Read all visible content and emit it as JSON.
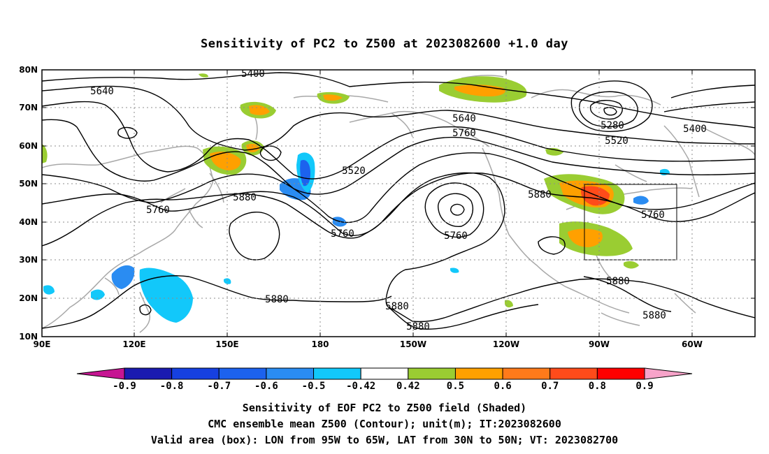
{
  "title": "Sensitivity of PC2 to Z500 at 2023082600 +1.0 day",
  "lat_labels": [
    "80N",
    "70N",
    "60N",
    "50N",
    "40N",
    "30N",
    "20N",
    "10N"
  ],
  "lon_labels": [
    "90E",
    "120E",
    "150E",
    "180",
    "150W",
    "120W",
    "90W",
    "60W"
  ],
  "contour_labels": [
    "5400",
    "5640",
    "5280",
    "5400",
    "5520",
    "5640",
    "5760",
    "5520",
    "5880",
    "5760",
    "5880",
    "5760",
    "5760",
    "5880",
    "5880",
    "5880",
    "5880",
    "5880",
    "5760"
  ],
  "colorbar": {
    "labels": [
      "-0.9",
      "-0.8",
      "-0.7",
      "-0.6",
      "-0.5",
      "-0.42",
      "0.42",
      "0.5",
      "0.6",
      "0.7",
      "0.8",
      "0.9"
    ],
    "colors": [
      "#c61592",
      "#1a1ab0",
      "#1640e0",
      "#1c62ee",
      "#2a8cf2",
      "#12c8fa",
      "#ffffff",
      "#9acd32",
      "#ffa000",
      "#ff7a1a",
      "#ff4b1a",
      "#ff0000",
      "#f7a3c9"
    ]
  },
  "captions": [
    "Sensitivity of EOF PC2 to Z500 field (Shaded)",
    "CMC ensemble mean Z500 (Contour); unit(m); IT:2023082600",
    "Valid area (box): LON from 95W to 65W, LAT from 30N to 50N; VT: 2023082700"
  ]
}
